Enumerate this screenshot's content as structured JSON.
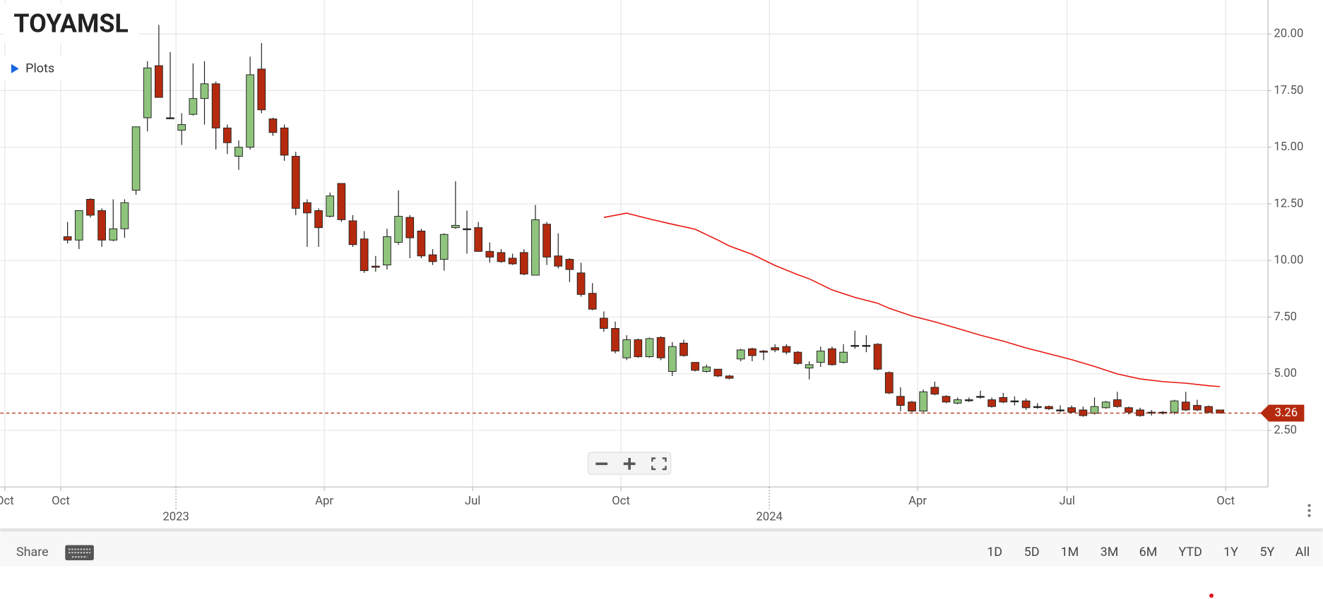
{
  "chart_data": {
    "type": "candlestick",
    "title": "TOYAMSL",
    "up_color": "#8fc47d",
    "down_color": "#b52a0e",
    "open": [
      11.05,
      10.9,
      12.7,
      12.2,
      10.9,
      11.4,
      13.1,
      16.3,
      18.6,
      16.3,
      15.75,
      16.45,
      17.15,
      17.8,
      15.85,
      14.6,
      15.0,
      18.45,
      16.25,
      15.85,
      14.6,
      12.55,
      12.2,
      11.95,
      13.4,
      11.75,
      10.95,
      9.75,
      9.8,
      10.8,
      11.9,
      11.3,
      10.25,
      10.05,
      11.45,
      11.4,
      11.45,
      10.4,
      10.35,
      10.1,
      10.35,
      9.35,
      11.6,
      10.2,
      10.05,
      9.45,
      8.55,
      7.45,
      7.0,
      5.7,
      6.5,
      5.75,
      6.6,
      5.1,
      6.35,
      5.5,
      5.1,
      5.2,
      4.9,
      5.65,
      6.1,
      6.0,
      6.15,
      6.2,
      5.95,
      5.25,
      5.5,
      6.1,
      5.5,
      6.25,
      6.25,
      6.3,
      5.05,
      4.0,
      3.75,
      3.35,
      4.4,
      4.0,
      3.7,
      3.85,
      4.0,
      3.85,
      3.95,
      3.8,
      3.8,
      3.55,
      3.55,
      3.4,
      3.5,
      3.4,
      3.25,
      3.5,
      3.85,
      3.5,
      3.4,
      3.3,
      3.3,
      3.3,
      3.75,
      3.6,
      3.55,
      3.4
    ],
    "high": [
      11.7,
      12.2,
      12.75,
      12.3,
      12.7,
      12.7,
      15.9,
      18.8,
      20.4,
      19.2,
      16.5,
      18.7,
      18.8,
      17.9,
      16.0,
      15.3,
      19.0,
      19.6,
      16.3,
      16.0,
      14.8,
      12.7,
      12.3,
      13.0,
      13.4,
      12.0,
      11.3,
      10.2,
      11.4,
      13.1,
      12.0,
      11.4,
      10.5,
      11.2,
      13.5,
      12.2,
      11.7,
      10.8,
      10.5,
      10.3,
      10.5,
      12.45,
      11.7,
      11.2,
      10.1,
      9.9,
      9.0,
      7.75,
      7.3,
      6.7,
      6.55,
      6.6,
      6.65,
      6.4,
      6.5,
      5.5,
      5.4,
      5.2,
      4.95,
      6.1,
      6.15,
      6.05,
      6.3,
      6.3,
      6.0,
      5.55,
      6.2,
      6.2,
      6.3,
      6.9,
      6.7,
      6.35,
      5.1,
      4.4,
      3.8,
      4.3,
      4.65,
      4.05,
      3.95,
      3.95,
      4.25,
      3.95,
      4.15,
      4.0,
      3.9,
      3.7,
      3.6,
      3.6,
      3.6,
      3.55,
      3.95,
      3.8,
      4.2,
      3.55,
      3.5,
      3.4,
      3.35,
      3.85,
      4.2,
      3.85,
      3.6,
      3.4
    ],
    "low": [
      10.75,
      10.5,
      11.9,
      10.6,
      10.85,
      11.0,
      12.9,
      15.7,
      17.2,
      16.3,
      15.1,
      16.4,
      16.0,
      14.9,
      14.7,
      14.0,
      14.9,
      16.5,
      15.5,
      14.4,
      12.0,
      10.6,
      10.6,
      11.9,
      11.7,
      10.6,
      9.45,
      9.5,
      9.6,
      10.7,
      10.1,
      10.1,
      9.8,
      9.55,
      11.4,
      10.3,
      10.4,
      9.9,
      9.9,
      9.8,
      9.35,
      9.35,
      9.8,
      9.65,
      9.05,
      8.4,
      7.8,
      6.85,
      5.9,
      5.6,
      5.7,
      5.7,
      5.6,
      4.9,
      5.75,
      5.1,
      5.05,
      4.85,
      4.75,
      5.55,
      5.55,
      5.6,
      5.95,
      5.85,
      5.4,
      4.75,
      5.3,
      5.35,
      5.45,
      6.1,
      5.95,
      5.15,
      4.1,
      3.35,
      3.3,
      3.3,
      4.05,
      3.7,
      3.65,
      3.75,
      3.9,
      3.5,
      3.7,
      3.6,
      3.4,
      3.45,
      3.4,
      3.3,
      3.25,
      3.1,
      3.2,
      3.45,
      3.5,
      3.2,
      3.1,
      3.15,
      3.2,
      3.2,
      3.35,
      3.35,
      3.25,
      3.25
    ],
    "close": [
      10.9,
      12.2,
      12.0,
      10.9,
      11.4,
      12.55,
      15.9,
      18.5,
      17.2,
      16.3,
      16.0,
      17.15,
      17.8,
      15.85,
      15.2,
      15.0,
      18.2,
      16.65,
      15.65,
      14.65,
      12.3,
      12.1,
      11.45,
      12.85,
      11.8,
      10.7,
      9.55,
      9.7,
      11.05,
      11.95,
      11.0,
      10.2,
      9.95,
      11.15,
      11.55,
      11.4,
      10.4,
      10.15,
      9.95,
      9.85,
      9.4,
      11.8,
      10.15,
      9.75,
      9.6,
      8.5,
      7.85,
      7.0,
      6.0,
      6.5,
      5.75,
      6.55,
      5.7,
      6.2,
      5.8,
      5.15,
      5.3,
      4.9,
      4.8,
      6.05,
      5.8,
      5.95,
      6.05,
      5.95,
      5.45,
      5.4,
      6.0,
      5.4,
      5.95,
      6.25,
      6.25,
      5.2,
      4.15,
      3.6,
      3.35,
      4.2,
      4.1,
      3.75,
      3.85,
      3.85,
      4.0,
      3.55,
      3.75,
      3.8,
      3.5,
      3.55,
      3.45,
      3.4,
      3.3,
      3.15,
      3.55,
      3.75,
      3.55,
      3.3,
      3.15,
      3.3,
      3.3,
      3.8,
      3.4,
      3.4,
      3.3,
      3.26
    ],
    "lines": [
      {
        "color": "#e8150e",
        "x": [
          47,
          49,
          51,
          53,
          55,
          57,
          58,
          60,
          62,
          64,
          65,
          67,
          69,
          71,
          72,
          74,
          76,
          78,
          80,
          82,
          84,
          86,
          88,
          90,
          92,
          94,
          96,
          98,
          100,
          101
        ],
        "values": [
          11.9,
          12.09,
          11.83,
          11.6,
          11.38,
          10.9,
          10.64,
          10.27,
          9.78,
          9.37,
          9.19,
          8.7,
          8.37,
          8.11,
          7.89,
          7.55,
          7.29,
          7.0,
          6.7,
          6.44,
          6.14,
          5.88,
          5.62,
          5.32,
          4.99,
          4.77,
          4.65,
          4.58,
          4.47,
          4.43
        ]
      }
    ],
    "last_price": 3.26,
    "last_price_color": "#b52a0e",
    "xlim": [
      -5.9,
      105.2
    ],
    "xticks": [
      {
        "value": -5.5,
        "label": "Oct"
      },
      {
        "value": -0.6,
        "label": "Oct"
      },
      {
        "value": 22.5,
        "label": "Apr"
      },
      {
        "value": 35.5,
        "label": "Jul"
      },
      {
        "value": 48.5,
        "label": "Oct"
      },
      {
        "value": 74.5,
        "label": "Apr"
      },
      {
        "value": 87.6,
        "label": "Jul"
      },
      {
        "value": 101.5,
        "label": "Oct"
      }
    ],
    "year_ticks": [
      {
        "value": 9.5,
        "label": "2023"
      },
      {
        "value": 61.5,
        "label": "2024"
      }
    ],
    "ylim": [
      0,
      21.5
    ],
    "yticks": [
      {
        "value": 2.5,
        "label": "2.50"
      },
      {
        "value": 5,
        "label": "5.00"
      },
      {
        "value": 7.5,
        "label": "7.50"
      },
      {
        "value": 10,
        "label": "10.00"
      },
      {
        "value": 12.5,
        "label": "12.50"
      },
      {
        "value": 15,
        "label": "15.00"
      },
      {
        "value": 17.5,
        "label": "17.50"
      },
      {
        "value": 20,
        "label": "20.00"
      }
    ],
    "grid": true
  },
  "ui": {
    "plots": "Plots",
    "share": "Share",
    "ranges": [
      "1D",
      "5D",
      "1M",
      "3M",
      "6M",
      "YTD",
      "1Y",
      "5Y",
      "All"
    ]
  }
}
